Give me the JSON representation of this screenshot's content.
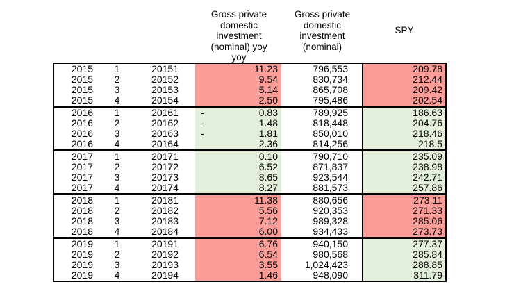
{
  "colors": {
    "negative_fill": "#FB9C98",
    "positive_fill": "#E3EEDB",
    "border": "#000000",
    "text": "#000000",
    "background": "#FFFFFF"
  },
  "headers": {
    "col_yoy": "Gross private\ndomestic\ninvestment\n(nominal) yoy\nyoy",
    "col_nominal": "Gross private\ndomestic\ninvestment\n(nominal)",
    "col_spy": "SPY"
  },
  "table": {
    "rows": [
      {
        "year": "2015",
        "quarter": "1",
        "code": "20151",
        "yoy_sign": "",
        "yoy": "11.23",
        "yoy_tone": "red",
        "nominal": "796,553",
        "spy": "209.78",
        "spy_tone": "red"
      },
      {
        "year": "2015",
        "quarter": "2",
        "code": "20152",
        "yoy_sign": "",
        "yoy": "9.54",
        "yoy_tone": "red",
        "nominal": "830,734",
        "spy": "212.44",
        "spy_tone": "red"
      },
      {
        "year": "2015",
        "quarter": "3",
        "code": "20153",
        "yoy_sign": "",
        "yoy": "5.14",
        "yoy_tone": "red",
        "nominal": "865,708",
        "spy": "209.42",
        "spy_tone": "red"
      },
      {
        "year": "2015",
        "quarter": "4",
        "code": "20154",
        "yoy_sign": "",
        "yoy": "2.50",
        "yoy_tone": "red",
        "nominal": "795,486",
        "spy": "202.54",
        "spy_tone": "red"
      },
      {
        "year": "2016",
        "quarter": "1",
        "code": "20161",
        "yoy_sign": "-",
        "yoy": "0.83",
        "yoy_tone": "green",
        "nominal": "789,925",
        "spy": "186.63",
        "spy_tone": "green"
      },
      {
        "year": "2016",
        "quarter": "2",
        "code": "20162",
        "yoy_sign": "-",
        "yoy": "1.48",
        "yoy_tone": "green",
        "nominal": "818,448",
        "spy": "204.76",
        "spy_tone": "green"
      },
      {
        "year": "2016",
        "quarter": "3",
        "code": "20163",
        "yoy_sign": "-",
        "yoy": "1.81",
        "yoy_tone": "green",
        "nominal": "850,010",
        "spy": "218.46",
        "spy_tone": "green"
      },
      {
        "year": "2016",
        "quarter": "4",
        "code": "20164",
        "yoy_sign": "",
        "yoy": "2.36",
        "yoy_tone": "green",
        "nominal": "814,256",
        "spy": "218.5",
        "spy_tone": "green"
      },
      {
        "year": "2017",
        "quarter": "1",
        "code": "20171",
        "yoy_sign": "",
        "yoy": "0.10",
        "yoy_tone": "green",
        "nominal": "790,710",
        "spy": "235.09",
        "spy_tone": "green"
      },
      {
        "year": "2017",
        "quarter": "2",
        "code": "20172",
        "yoy_sign": "",
        "yoy": "6.52",
        "yoy_tone": "green",
        "nominal": "871,837",
        "spy": "238.98",
        "spy_tone": "green"
      },
      {
        "year": "2017",
        "quarter": "3",
        "code": "20173",
        "yoy_sign": "",
        "yoy": "8.65",
        "yoy_tone": "green",
        "nominal": "923,544",
        "spy": "242.71",
        "spy_tone": "green"
      },
      {
        "year": "2017",
        "quarter": "4",
        "code": "20174",
        "yoy_sign": "",
        "yoy": "8.27",
        "yoy_tone": "green",
        "nominal": "881,573",
        "spy": "257.86",
        "spy_tone": "green"
      },
      {
        "year": "2018",
        "quarter": "1",
        "code": "20181",
        "yoy_sign": "",
        "yoy": "11.38",
        "yoy_tone": "red",
        "nominal": "880,656",
        "spy": "273.11",
        "spy_tone": "red"
      },
      {
        "year": "2018",
        "quarter": "2",
        "code": "20182",
        "yoy_sign": "",
        "yoy": "5.56",
        "yoy_tone": "red",
        "nominal": "920,353",
        "spy": "271.33",
        "spy_tone": "red"
      },
      {
        "year": "2018",
        "quarter": "3",
        "code": "20183",
        "yoy_sign": "",
        "yoy": "7.12",
        "yoy_tone": "red",
        "nominal": "989,328",
        "spy": "285.06",
        "spy_tone": "red"
      },
      {
        "year": "2018",
        "quarter": "4",
        "code": "20184",
        "yoy_sign": "",
        "yoy": "6.00",
        "yoy_tone": "red",
        "nominal": "934,433",
        "spy": "273.73",
        "spy_tone": "red"
      },
      {
        "year": "2019",
        "quarter": "1",
        "code": "20191",
        "yoy_sign": "",
        "yoy": "6.76",
        "yoy_tone": "red",
        "nominal": "940,150",
        "spy": "277.37",
        "spy_tone": "green"
      },
      {
        "year": "2019",
        "quarter": "2",
        "code": "20192",
        "yoy_sign": "",
        "yoy": "6.54",
        "yoy_tone": "red",
        "nominal": "980,568",
        "spy": "285.84",
        "spy_tone": "green"
      },
      {
        "year": "2019",
        "quarter": "3",
        "code": "20193",
        "yoy_sign": "",
        "yoy": "3.55",
        "yoy_tone": "red",
        "nominal": "1,024,423",
        "spy": "288.85",
        "spy_tone": "green"
      },
      {
        "year": "2019",
        "quarter": "4",
        "code": "20194",
        "yoy_sign": "",
        "yoy": "1.46",
        "yoy_tone": "red",
        "nominal": "948,090",
        "spy": "311.79",
        "spy_tone": "green"
      }
    ]
  }
}
